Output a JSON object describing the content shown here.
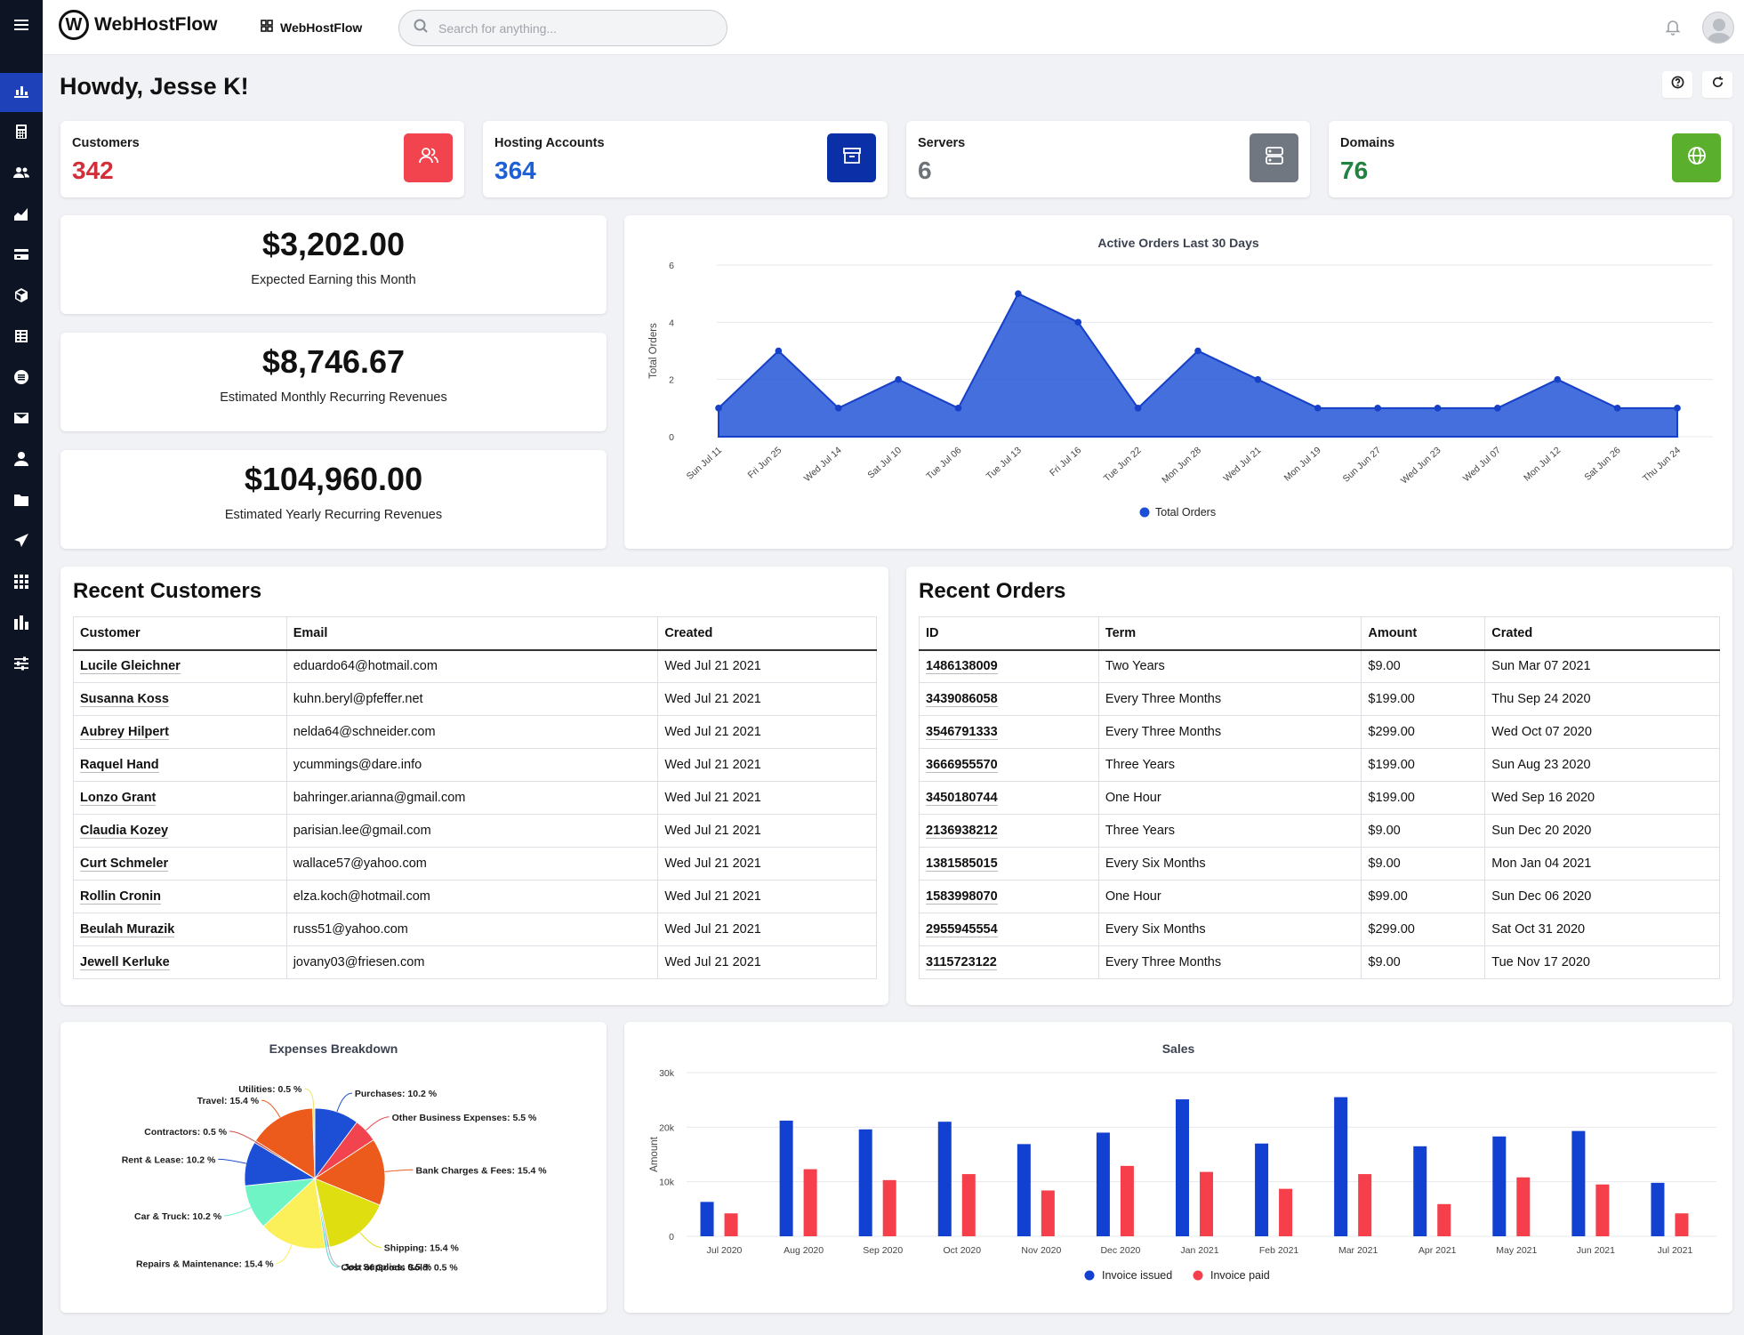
{
  "app": {
    "name": "WebHostFlow",
    "workspace": "WebHostFlow"
  },
  "search": {
    "placeholder": "Search for anything..."
  },
  "greeting": "Howdy, Jesse K!",
  "stats": [
    {
      "label": "Customers",
      "value": "342",
      "color": "#d32f3a",
      "icon_bg": "#f2444f",
      "icon": "users-icon"
    },
    {
      "label": "Hosting Accounts",
      "value": "364",
      "color": "#1d5fd6",
      "icon_bg": "#0a2fa6",
      "icon": "archive-icon"
    },
    {
      "label": "Servers",
      "value": "6",
      "color": "#6c737a",
      "icon_bg": "#707780",
      "icon": "server-icon"
    },
    {
      "label": "Domains",
      "value": "76",
      "color": "#228040",
      "icon_bg": "#5ab02c",
      "icon": "globe-icon"
    }
  ],
  "revenue": [
    {
      "amount": "$3,202.00",
      "label": "Expected Earning this Month"
    },
    {
      "amount": "$8,746.67",
      "label": "Estimated Monthly Recurring Revenues"
    },
    {
      "amount": "$104,960.00",
      "label": "Estimated Yearly Recurring Revenues"
    }
  ],
  "recent_customers": {
    "title": "Recent Customers",
    "columns": [
      "Customer",
      "Email",
      "Created"
    ],
    "rows": [
      [
        "Lucile Gleichner",
        "eduardo64@hotmail.com",
        "Wed Jul 21 2021"
      ],
      [
        "Susanna Koss",
        "kuhn.beryl@pfeffer.net",
        "Wed Jul 21 2021"
      ],
      [
        "Aubrey Hilpert",
        "nelda64@schneider.com",
        "Wed Jul 21 2021"
      ],
      [
        "Raquel Hand",
        "ycummings@dare.info",
        "Wed Jul 21 2021"
      ],
      [
        "Lonzo Grant",
        "bahringer.arianna@gmail.com",
        "Wed Jul 21 2021"
      ],
      [
        "Claudia Kozey",
        "parisian.lee@gmail.com",
        "Wed Jul 21 2021"
      ],
      [
        "Curt Schmeler",
        "wallace57@yahoo.com",
        "Wed Jul 21 2021"
      ],
      [
        "Rollin Cronin",
        "elza.koch@hotmail.com",
        "Wed Jul 21 2021"
      ],
      [
        "Beulah Murazik",
        "russ51@yahoo.com",
        "Wed Jul 21 2021"
      ],
      [
        "Jewell Kerluke",
        "jovany03@friesen.com",
        "Wed Jul 21 2021"
      ]
    ]
  },
  "recent_orders": {
    "title": "Recent Orders",
    "columns": [
      "ID",
      "Term",
      "Amount",
      "Crated"
    ],
    "rows": [
      [
        "1486138009",
        "Two Years",
        "$9.00",
        "Sun Mar 07 2021"
      ],
      [
        "3439086058",
        "Every Three Months",
        "$199.00",
        "Thu Sep 24 2020"
      ],
      [
        "3546791333",
        "Every Three Months",
        "$299.00",
        "Wed Oct 07 2020"
      ],
      [
        "3666955570",
        "Three Years",
        "$199.00",
        "Sun Aug 23 2020"
      ],
      [
        "3450180744",
        "One Hour",
        "$199.00",
        "Wed Sep 16 2020"
      ],
      [
        "2136938212",
        "Three Years",
        "$9.00",
        "Sun Dec 20 2020"
      ],
      [
        "1381585015",
        "Every Six Months",
        "$9.00",
        "Mon Jan 04 2021"
      ],
      [
        "1583998070",
        "One Hour",
        "$99.00",
        "Sun Dec 06 2020"
      ],
      [
        "2955945554",
        "Every Six Months",
        "$299.00",
        "Sat Oct 31 2020"
      ],
      [
        "3115723122",
        "Every Three Months",
        "$9.00",
        "Tue Nov 17 2020"
      ]
    ]
  },
  "chart_data": [
    {
      "type": "area",
      "title": "Active Orders Last 30 Days",
      "ylabel": "Total Orders",
      "ylim": [
        0,
        6
      ],
      "yticks": [
        0,
        2,
        4,
        6
      ],
      "categories": [
        "Sun Jul 11",
        "Fri Jun 25",
        "Wed Jul 14",
        "Sat Jul 10",
        "Tue Jul 06",
        "Tue Jul 13",
        "Fri Jul 16",
        "Tue Jun 22",
        "Mon Jun 28",
        "Wed Jul 21",
        "Mon Jul 19",
        "Sun Jun 27",
        "Wed Jun 23",
        "Wed Jul 07",
        "Mon Jul 12",
        "Sat Jun 26",
        "Thu Jun 24"
      ],
      "series": [
        {
          "name": "Total Orders",
          "color": "#1c4fd6",
          "values": [
            1,
            3,
            1,
            2,
            1,
            5,
            4,
            1,
            3,
            2,
            1,
            1,
            1,
            1,
            2,
            1,
            1
          ]
        }
      ],
      "legend": "bottom"
    },
    {
      "type": "pie",
      "title": "Expenses Breakdown",
      "slices": [
        {
          "label": "Purchases: 10.2 %",
          "value": 10.2,
          "color": "#1c4fd6"
        },
        {
          "label": "Other Business Expenses: 5.5 %",
          "value": 5.5,
          "color": "#f2444f"
        },
        {
          "label": "Bank Charges & Fees: 15.4 %",
          "value": 15.4,
          "color": "#ec5a1c"
        },
        {
          "label": "Shipping: 15.4 %",
          "value": 15.4,
          "color": "#dede10"
        },
        {
          "label": "Job Supplies: 0.5 %",
          "value": 0.5,
          "color": "#a8aebc"
        },
        {
          "label": "Cost of Goods Sold: 0.5 %",
          "value": 0.5,
          "color": "#4fd8d0"
        },
        {
          "label": "Repairs & Maintenance: 15.4 %",
          "value": 15.4,
          "color": "#fbf05a"
        },
        {
          "label": "Car & Truck: 10.2 %",
          "value": 10.2,
          "color": "#6ff5c5"
        },
        {
          "label": "Rent & Lease: 10.2 %",
          "value": 10.2,
          "color": "#1c4fd6"
        },
        {
          "label": "Contractors: 0.5 %",
          "value": 0.5,
          "color": "#c94d48"
        },
        {
          "label": "Travel: 15.4 %",
          "value": 15.4,
          "color": "#ec5a1c"
        },
        {
          "label": "Utilities: 0.5 %",
          "value": 0.5,
          "color": "#ede26a"
        }
      ]
    },
    {
      "type": "bar",
      "title": "Sales",
      "ylabel": "Amount",
      "ylim": [
        0,
        30000
      ],
      "yticks": [
        "0",
        "10k",
        "20k",
        "30k"
      ],
      "categories": [
        "Jul 2020",
        "Aug 2020",
        "Sep 2020",
        "Oct 2020",
        "Nov 2020",
        "Dec 2020",
        "Jan 2021",
        "Feb 2021",
        "Mar 2021",
        "Apr 2021",
        "May 2021",
        "Jun 2021",
        "Jul 2021"
      ],
      "series": [
        {
          "name": "Invoice issued",
          "color": "#1240d0",
          "values": [
            6300,
            21200,
            19600,
            21000,
            16900,
            19000,
            25100,
            17000,
            25500,
            16500,
            18300,
            19300,
            9800
          ]
        },
        {
          "name": "Invoice paid",
          "color": "#f5404c",
          "values": [
            4200,
            12300,
            10300,
            11400,
            8400,
            12900,
            11800,
            8700,
            11400,
            5900,
            10800,
            9500,
            4200
          ]
        }
      ],
      "legend": "bottom"
    }
  ]
}
